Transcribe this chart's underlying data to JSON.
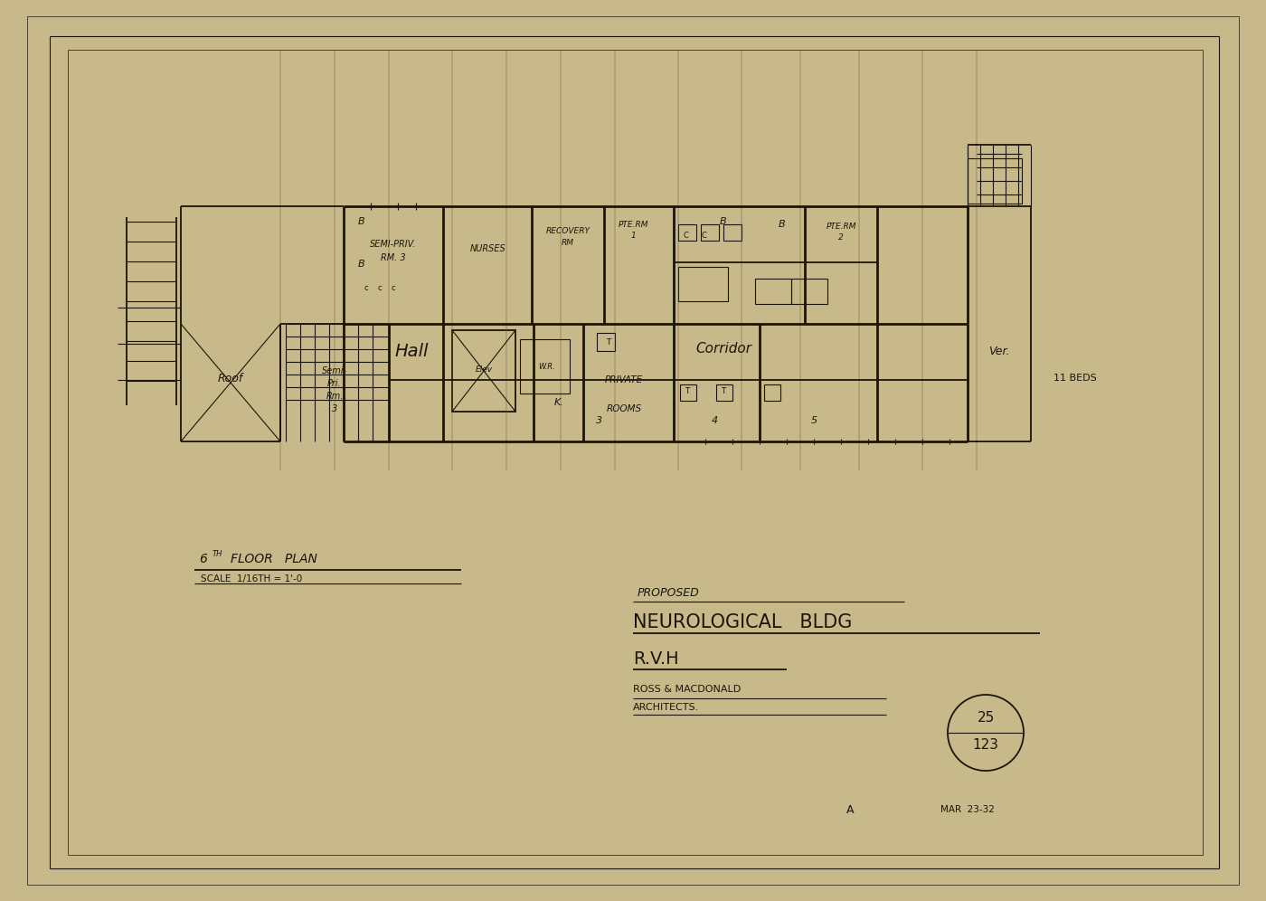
{
  "bg_color": "#c8b98a",
  "paper_color": "#c8b98a",
  "line_color": "#1a1508",
  "fig_width": 14.0,
  "fig_height": 9.96,
  "title_block": {
    "proposed": "PROPOSED",
    "building": "NEUROLOGICAL   BLDG",
    "client": "R.V.H",
    "firm": "ROSS & MACDONALD",
    "subtitle": "ARCHITECTS.",
    "drawing_num": "25",
    "drawing_sub": "123",
    "letter": "A",
    "date": "MAR  23-32"
  },
  "plan_title": "6TH FLOOR   PLAN",
  "plan_scale": "SCALE  1/16TH = 1'-0",
  "annotation_beds": "11 BEDS"
}
